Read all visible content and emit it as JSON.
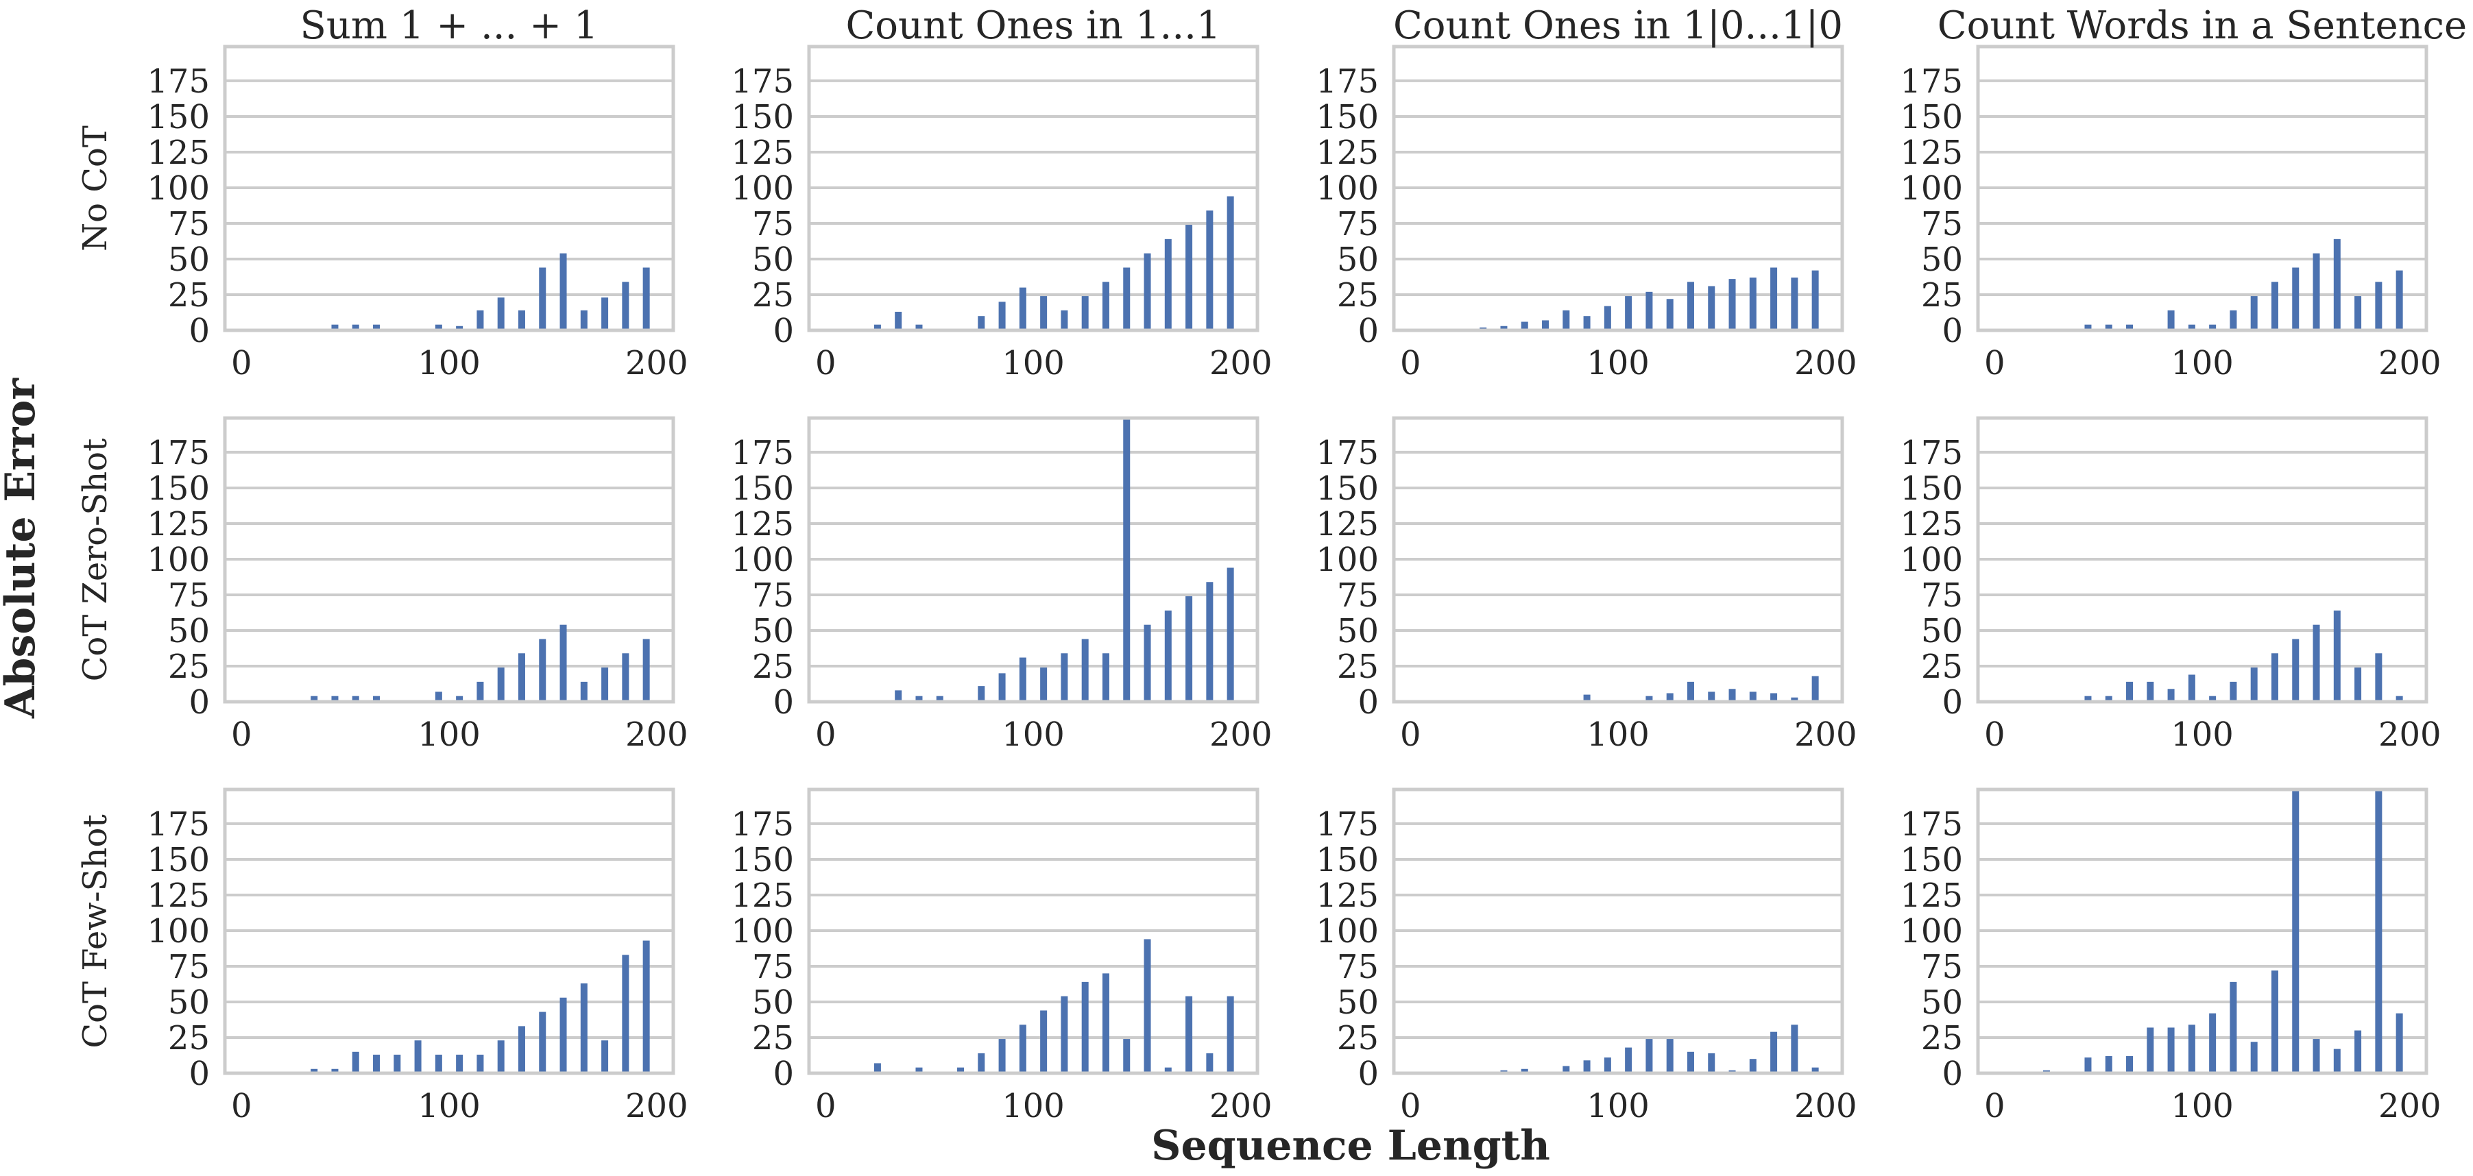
{
  "figure": {
    "xlabel": "Sequence Length",
    "ylabel": "Absolute Error",
    "bar_color": "#4c72b0",
    "grid_color": "#cccccc",
    "frame_color": "#cccccc"
  },
  "columns": [
    "Sum 1 + ... + 1",
    "Count Ones in 1...1",
    "Count Ones in 1|0...1|0",
    "Count Words in a Sentence"
  ],
  "rows": [
    "No CoT",
    "CoT Zero-Shot",
    "CoT Few-Shot"
  ],
  "chart_data": {
    "type": "bar",
    "x": [
      5,
      15,
      25,
      35,
      45,
      55,
      65,
      75,
      85,
      95,
      105,
      115,
      125,
      135,
      145,
      155,
      165,
      175,
      185,
      195
    ],
    "xlim": [
      -8,
      208
    ],
    "ylim": [
      0,
      199
    ],
    "xticks": [
      0,
      100,
      200
    ],
    "yticks": [
      0,
      25,
      50,
      75,
      100,
      125,
      150,
      175
    ],
    "panels": [
      {
        "row": "No CoT",
        "column": "Sum 1 + ... + 1",
        "values": [
          0,
          0,
          0,
          0,
          4,
          4,
          4,
          0,
          0,
          4,
          3,
          14,
          23,
          14,
          44,
          54,
          14,
          23,
          34,
          44
        ]
      },
      {
        "row": "No CoT",
        "column": "Count Ones in 1...1",
        "values": [
          0,
          0,
          4,
          13,
          4,
          0,
          0,
          10,
          20,
          30,
          24,
          14,
          24,
          34,
          44,
          54,
          64,
          74,
          84,
          94
        ]
      },
      {
        "row": "No CoT",
        "column": "Count Ones in 1|0...1|0",
        "values": [
          0,
          0,
          0,
          2,
          3,
          6,
          7,
          14,
          10,
          17,
          24,
          27,
          22,
          34,
          31,
          36,
          37,
          44,
          37,
          42
        ]
      },
      {
        "row": "No CoT",
        "column": "Count Words in a Sentence",
        "values": [
          0,
          0,
          0,
          0,
          4,
          4,
          4,
          0,
          14,
          4,
          4,
          14,
          24,
          34,
          44,
          54,
          64,
          24,
          34,
          42
        ]
      },
      {
        "row": "CoT Zero-Shot",
        "column": "Sum 1 + ... + 1",
        "values": [
          0,
          0,
          0,
          4,
          4,
          4,
          4,
          0,
          0,
          7,
          4,
          14,
          24,
          34,
          44,
          54,
          14,
          24,
          34,
          44
        ]
      },
      {
        "row": "CoT Zero-Shot",
        "column": "Count Ones in 1...1",
        "values": [
          0,
          0,
          0,
          8,
          4,
          4,
          0,
          11,
          20,
          31,
          24,
          34,
          44,
          34,
          199,
          54,
          64,
          74,
          84,
          94
        ]
      },
      {
        "row": "CoT Zero-Shot",
        "column": "Count Ones in 1|0...1|0",
        "values": [
          0,
          0,
          0,
          0,
          0,
          1,
          0,
          0,
          5,
          0,
          1,
          4,
          6,
          14,
          7,
          9,
          7,
          6,
          3,
          18
        ]
      },
      {
        "row": "CoT Zero-Shot",
        "column": "Count Words in a Sentence",
        "values": [
          0,
          0,
          0,
          0,
          4,
          4,
          14,
          14,
          9,
          19,
          4,
          14,
          24,
          34,
          44,
          54,
          64,
          24,
          34,
          4
        ]
      },
      {
        "row": "CoT Few-Shot",
        "column": "Sum 1 + ... + 1",
        "values": [
          0,
          0,
          0,
          3,
          3,
          15,
          13,
          13,
          23,
          13,
          13,
          13,
          23,
          33,
          43,
          53,
          63,
          23,
          83,
          93
        ]
      },
      {
        "row": "CoT Few-Shot",
        "column": "Count Ones in 1...1",
        "values": [
          0,
          0,
          7,
          0,
          4,
          0,
          4,
          14,
          24,
          34,
          44,
          54,
          64,
          70,
          24,
          94,
          4,
          54,
          14,
          54
        ]
      },
      {
        "row": "CoT Few-Shot",
        "column": "Count Ones in 1|0...1|0",
        "values": [
          0,
          0,
          0,
          0,
          2,
          3,
          0,
          5,
          9,
          11,
          18,
          24,
          24,
          15,
          14,
          2,
          10,
          29,
          34,
          4
        ]
      },
      {
        "row": "CoT Few-Shot",
        "column": "Count Words in a Sentence",
        "values": [
          0,
          0,
          2,
          0,
          11,
          12,
          12,
          32,
          32,
          34,
          42,
          64,
          22,
          72,
          199,
          24,
          17,
          30,
          199,
          42
        ]
      }
    ]
  }
}
